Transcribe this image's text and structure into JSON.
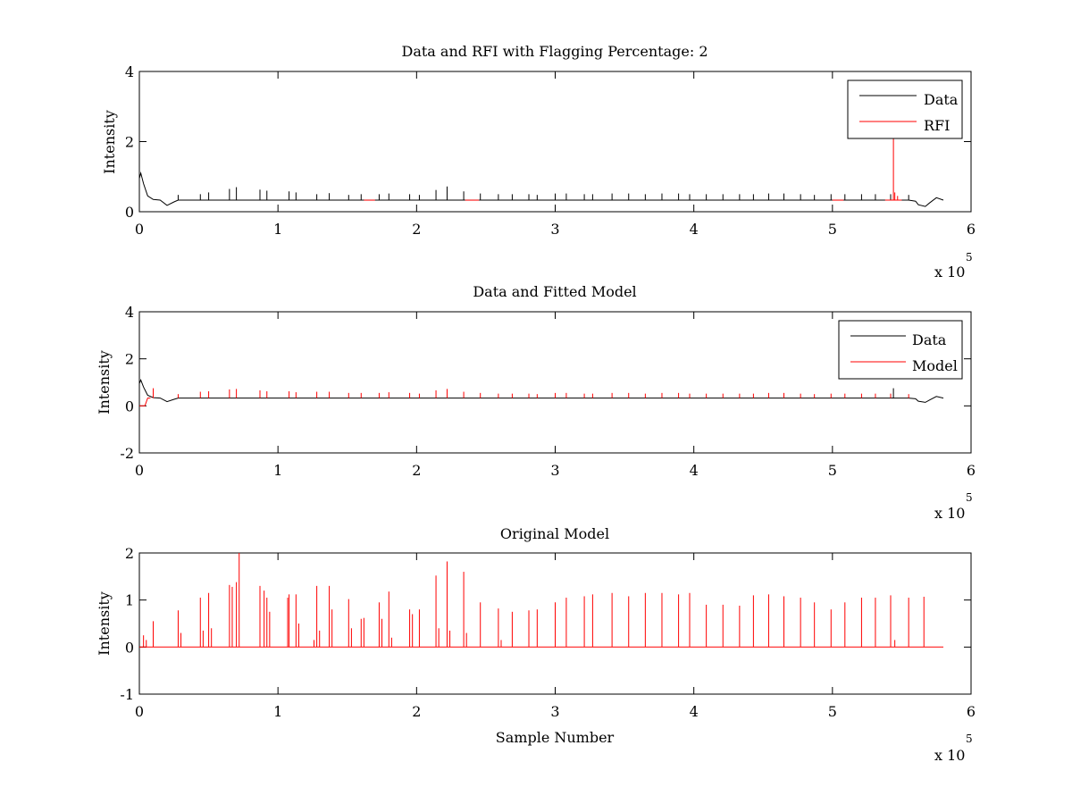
{
  "chart_data": [
    {
      "type": "line",
      "title": "Data and RFI with Flagging Percentage: 2",
      "xlabel": "",
      "ylabel": "Intensity",
      "xlim": [
        0,
        6
      ],
      "ylim": [
        0,
        4
      ],
      "x_multiplier": "x 10",
      "x_exponent": "5",
      "xticks": [
        0,
        1,
        2,
        3,
        4,
        5,
        6
      ],
      "yticks": [
        0,
        2,
        4
      ],
      "legend": {
        "placement": "top-right",
        "entries": [
          "Data",
          "RFI"
        ]
      },
      "series": [
        {
          "name": "Data",
          "color": "#000000",
          "baseline": 0.33,
          "x": [
            0,
            0.01,
            0.03,
            0.06,
            0.1,
            0.15,
            0.2,
            0.25,
            0.28,
            0.35,
            5.55,
            5.6,
            5.62,
            5.67,
            5.7,
            5.75,
            5.8
          ],
          "y": [
            0.95,
            1.1,
            0.8,
            0.45,
            0.35,
            0.33,
            0.18,
            0.28,
            0.33,
            0.33,
            0.33,
            0.3,
            0.2,
            0.15,
            0.25,
            0.4,
            0.33
          ],
          "spikes_x": [
            0.28,
            0.44,
            0.5,
            0.65,
            0.7,
            0.87,
            0.92,
            1.08,
            1.13,
            1.28,
            1.37,
            1.51,
            1.6,
            1.73,
            1.8,
            1.95,
            2.02,
            2.14,
            2.22,
            2.34,
            2.46,
            2.59,
            2.69,
            2.81,
            2.87,
            3.0,
            3.08,
            3.21,
            3.27,
            3.41,
            3.53,
            3.65,
            3.77,
            3.89,
            3.97,
            4.09,
            4.21,
            4.33,
            4.43,
            4.54,
            4.65,
            4.77,
            4.87,
            4.99,
            5.09,
            5.21,
            5.31,
            5.42,
            5.55
          ],
          "spikes_y": [
            0.48,
            0.5,
            0.55,
            0.65,
            0.7,
            0.63,
            0.6,
            0.58,
            0.55,
            0.5,
            0.53,
            0.48,
            0.5,
            0.5,
            0.52,
            0.5,
            0.48,
            0.62,
            0.72,
            0.58,
            0.52,
            0.5,
            0.5,
            0.5,
            0.48,
            0.52,
            0.52,
            0.5,
            0.5,
            0.52,
            0.52,
            0.5,
            0.52,
            0.52,
            0.5,
            0.5,
            0.5,
            0.5,
            0.5,
            0.52,
            0.52,
            0.5,
            0.48,
            0.5,
            0.5,
            0.5,
            0.5,
            0.5,
            0.48
          ]
        },
        {
          "name": "RFI",
          "color": "#ff0000",
          "segments": [
            {
              "x": [
                1.62,
                1.7
              ],
              "y": [
                0.33,
                0.33
              ]
            },
            {
              "x": [
                2.35,
                2.45
              ],
              "y": [
                0.33,
                0.33
              ]
            },
            {
              "x": [
                5.0,
                5.08
              ],
              "y": [
                0.33,
                0.33
              ]
            },
            {
              "x": [
                5.38,
                5.5
              ],
              "y": [
                0.33,
                0.33
              ]
            }
          ],
          "spikes_x": [
            5.44,
            5.45,
            5.47
          ],
          "spikes_y": [
            2.15,
            0.55,
            0.45
          ]
        }
      ]
    },
    {
      "type": "line",
      "title": "Data and Fitted Model",
      "xlabel": "",
      "ylabel": "Intensity",
      "xlim": [
        0,
        6
      ],
      "ylim": [
        -2,
        4
      ],
      "x_multiplier": "x 10",
      "x_exponent": "5",
      "xticks": [
        0,
        1,
        2,
        3,
        4,
        5,
        6
      ],
      "yticks": [
        -2,
        0,
        2,
        4
      ],
      "legend": {
        "placement": "top-right",
        "entries": [
          "Data",
          "Model"
        ]
      },
      "series": [
        {
          "name": "Data",
          "color": "#000000",
          "baseline": 0.33,
          "x": [
            0,
            0.01,
            0.03,
            0.06,
            0.1,
            0.15,
            0.2,
            0.25,
            0.28,
            0.35,
            5.55,
            5.6,
            5.62,
            5.67,
            5.7,
            5.75,
            5.8
          ],
          "y": [
            0.95,
            1.1,
            0.8,
            0.45,
            0.35,
            0.33,
            0.18,
            0.28,
            0.33,
            0.33,
            0.33,
            0.3,
            0.2,
            0.15,
            0.25,
            0.4,
            0.33
          ],
          "spikes_x": [
            5.44
          ],
          "spikes_y": [
            0.75
          ]
        },
        {
          "name": "Model",
          "color": "#ff0000",
          "baseline": 0.33,
          "x": [
            0,
            0.04,
            0.06,
            0.08
          ],
          "y": [
            0.0,
            0.0,
            0.33,
            0.33
          ],
          "spikes_x": [
            0.1,
            0.28,
            0.44,
            0.5,
            0.65,
            0.7,
            0.87,
            0.92,
            1.08,
            1.13,
            1.28,
            1.37,
            1.51,
            1.6,
            1.73,
            1.8,
            1.95,
            2.02,
            2.14,
            2.22,
            2.34,
            2.46,
            2.59,
            2.69,
            2.81,
            2.87,
            3.0,
            3.08,
            3.21,
            3.27,
            3.41,
            3.53,
            3.65,
            3.77,
            3.89,
            3.97,
            4.09,
            4.21,
            4.33,
            4.43,
            4.54,
            4.65,
            4.77,
            4.87,
            4.99,
            5.09,
            5.21,
            5.31,
            5.42,
            5.55
          ],
          "spikes_y": [
            0.75,
            0.5,
            0.6,
            0.62,
            0.7,
            0.72,
            0.66,
            0.62,
            0.62,
            0.58,
            0.6,
            0.6,
            0.55,
            0.55,
            0.55,
            0.58,
            0.55,
            0.52,
            0.66,
            0.72,
            0.6,
            0.55,
            0.52,
            0.52,
            0.52,
            0.5,
            0.55,
            0.55,
            0.52,
            0.52,
            0.55,
            0.55,
            0.52,
            0.55,
            0.55,
            0.52,
            0.52,
            0.52,
            0.52,
            0.52,
            0.55,
            0.55,
            0.52,
            0.5,
            0.52,
            0.52,
            0.52,
            0.52,
            0.52,
            0.5
          ]
        }
      ]
    },
    {
      "type": "line",
      "title": "Original Model",
      "xlabel": "Sample Number",
      "ylabel": "Intensity",
      "xlim": [
        0,
        6
      ],
      "ylim": [
        -1,
        2
      ],
      "x_multiplier": "x 10",
      "x_exponent": "5",
      "xticks": [
        0,
        1,
        2,
        3,
        4,
        5,
        6
      ],
      "yticks": [
        -1,
        0,
        1,
        2
      ],
      "series": [
        {
          "name": "",
          "color": "#ff0000",
          "baseline": 0,
          "x": [
            0,
            5.8
          ],
          "y": [
            0,
            0
          ],
          "spikes_x": [
            0.03,
            0.05,
            0.1,
            0.28,
            0.3,
            0.44,
            0.46,
            0.5,
            0.52,
            0.65,
            0.67,
            0.7,
            0.72,
            0.87,
            0.9,
            0.92,
            0.94,
            1.07,
            1.08,
            1.13,
            1.15,
            1.26,
            1.28,
            1.3,
            1.37,
            1.39,
            1.51,
            1.53,
            1.6,
            1.62,
            1.73,
            1.75,
            1.8,
            1.82,
            1.95,
            1.97,
            2.02,
            2.14,
            2.16,
            2.22,
            2.24,
            2.34,
            2.36,
            2.46,
            2.59,
            2.61,
            2.69,
            2.81,
            2.87,
            3.0,
            3.08,
            3.21,
            3.27,
            3.41,
            3.53,
            3.65,
            3.77,
            3.89,
            3.97,
            4.09,
            4.21,
            4.33,
            4.43,
            4.54,
            4.65,
            4.77,
            4.87,
            4.99,
            5.09,
            5.21,
            5.31,
            5.42,
            5.45,
            5.55,
            5.66
          ],
          "spikes_y": [
            0.25,
            0.15,
            0.55,
            0.78,
            0.3,
            1.05,
            0.35,
            1.15,
            0.4,
            1.32,
            1.28,
            1.38,
            2.0,
            1.3,
            1.2,
            1.05,
            0.75,
            1.05,
            1.12,
            1.12,
            0.5,
            0.15,
            1.3,
            0.35,
            1.3,
            0.8,
            1.02,
            0.4,
            0.6,
            0.62,
            0.95,
            0.6,
            1.18,
            0.2,
            0.8,
            0.7,
            0.8,
            1.52,
            0.4,
            1.82,
            0.35,
            1.6,
            0.3,
            0.95,
            0.82,
            0.15,
            0.75,
            0.78,
            0.8,
            0.95,
            1.05,
            1.08,
            1.12,
            1.15,
            1.08,
            1.15,
            1.15,
            1.12,
            1.15,
            0.9,
            0.9,
            0.88,
            1.1,
            1.12,
            1.08,
            1.05,
            0.95,
            0.8,
            0.95,
            1.05,
            1.05,
            1.1,
            0.15,
            1.05,
            1.07
          ]
        }
      ]
    }
  ]
}
